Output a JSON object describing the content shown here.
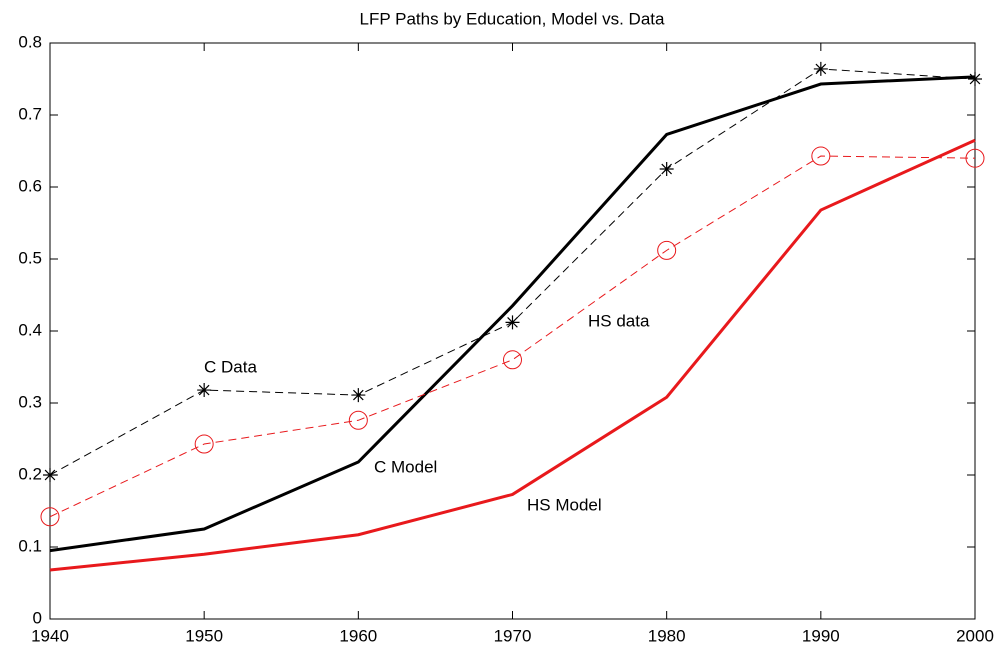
{
  "chart_data": {
    "type": "line",
    "title": "LFP Paths by Education, Model vs. Data",
    "x": [
      1940,
      1950,
      1960,
      1970,
      1980,
      1990,
      2000
    ],
    "series": [
      {
        "name": "C Model",
        "color": "#000000",
        "dash": false,
        "marker": "none",
        "values": [
          0.095,
          0.125,
          0.218,
          0.435,
          0.673,
          0.743,
          0.753
        ]
      },
      {
        "name": "C Data",
        "color": "#000000",
        "dash": true,
        "marker": "asterisk",
        "values": [
          0.2,
          0.318,
          0.311,
          0.412,
          0.625,
          0.764,
          0.75
        ]
      },
      {
        "name": "HS Model",
        "color": "#e8191c",
        "dash": false,
        "marker": "none",
        "values": [
          0.068,
          0.09,
          0.117,
          0.173,
          0.308,
          0.568,
          0.665
        ]
      },
      {
        "name": "HS data",
        "color": "#e8191c",
        "dash": true,
        "marker": "circle",
        "values": [
          0.142,
          0.243,
          0.276,
          0.36,
          0.512,
          0.643,
          0.64
        ]
      }
    ],
    "xlim": [
      1940,
      2000
    ],
    "xticks": [
      1940,
      1950,
      1960,
      1970,
      1980,
      1990,
      2000
    ],
    "ylim": [
      0,
      0.8
    ],
    "yticks": [
      0,
      0.1,
      0.2,
      0.3,
      0.4,
      0.5,
      0.6,
      0.7,
      0.8
    ],
    "grid": false
  }
}
